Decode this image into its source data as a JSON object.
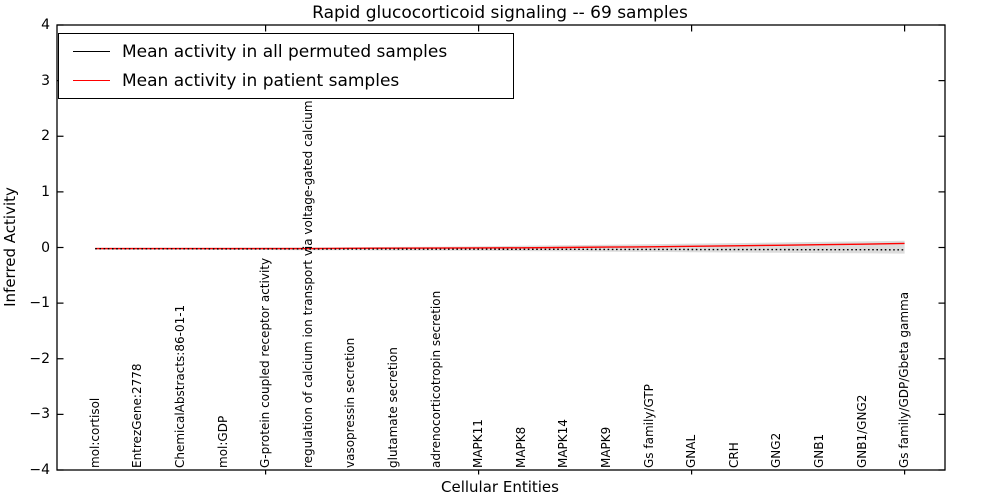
{
  "title": "Rapid glucocorticoid signaling -- 69 samples",
  "axes": {
    "xlabel": "Cellular Entities",
    "ylabel": "Inferred Activity",
    "ytick_labels": [
      "4",
      "3",
      "2",
      "1",
      "0",
      "−1",
      "−2",
      "−3",
      "−4"
    ],
    "ylim": [
      -4,
      4
    ]
  },
  "legend": {
    "items": [
      {
        "label": "Mean activity in all permuted samples",
        "color": "#000000"
      },
      {
        "label": "Mean activity in patient samples",
        "color": "#ff0000"
      }
    ]
  },
  "chart_data": {
    "type": "line",
    "title": "Rapid glucocorticoid signaling -- 69 samples",
    "xlabel": "Cellular Entities",
    "ylabel": "Inferred Activity",
    "ylim": [
      -4,
      4
    ],
    "grid": false,
    "legend_position": "upper left",
    "categories": [
      "mol:cortisol",
      "EntrezGene:2778",
      "ChemicalAbstracts:86-01-1",
      "mol:GDP",
      "G-protein coupled receptor activity",
      "regulation of calcium ion transport via voltage-gated calcium channel",
      "vasopressin secretion",
      "glutamate secretion",
      "adrenocorticotropin secretion",
      "MAPK11",
      "MAPK8",
      "MAPK14",
      "MAPK9",
      "Gs family/GTP",
      "GNAL",
      "CRH",
      "GNG2",
      "GNB1",
      "GNB1/GNG2",
      "Gs family/GDP/Gbeta gamma"
    ],
    "major_xtick_indices": [
      4,
      9,
      14,
      19
    ],
    "series": [
      {
        "name": "Mean activity in all permuted samples",
        "color": "#000000",
        "style": "dotted",
        "values": [
          -0.022,
          -0.023,
          -0.024,
          -0.025,
          -0.026,
          -0.027,
          -0.028,
          -0.029,
          -0.03,
          -0.031,
          -0.032,
          -0.033,
          -0.034,
          -0.035,
          -0.036,
          -0.037,
          -0.038,
          -0.039,
          -0.04,
          -0.042
        ]
      },
      {
        "name": "Mean activity in patient samples",
        "color": "#ff0000",
        "style": "solid",
        "values": [
          -0.02,
          -0.02,
          -0.02,
          -0.02,
          -0.02,
          -0.02,
          -0.015,
          -0.012,
          -0.01,
          -0.008,
          -0.005,
          0.0,
          0.007,
          0.013,
          0.021,
          0.03,
          0.04,
          0.05,
          0.06,
          0.073
        ]
      }
    ],
    "band": {
      "name": "permuted activity spread",
      "color": "#dcdcdc",
      "upper": [
        -0.005,
        -0.005,
        -0.005,
        -0.005,
        0.0,
        0.0,
        0.005,
        0.01,
        0.015,
        0.02,
        0.03,
        0.04,
        0.05,
        0.06,
        0.07,
        0.08,
        0.09,
        0.1,
        0.11,
        0.12
      ],
      "lower": [
        -0.04,
        -0.04,
        -0.04,
        -0.045,
        -0.045,
        -0.05,
        -0.05,
        -0.055,
        -0.055,
        -0.06,
        -0.065,
        -0.07,
        -0.075,
        -0.08,
        -0.085,
        -0.09,
        -0.095,
        -0.1,
        -0.105,
        -0.11
      ]
    }
  }
}
